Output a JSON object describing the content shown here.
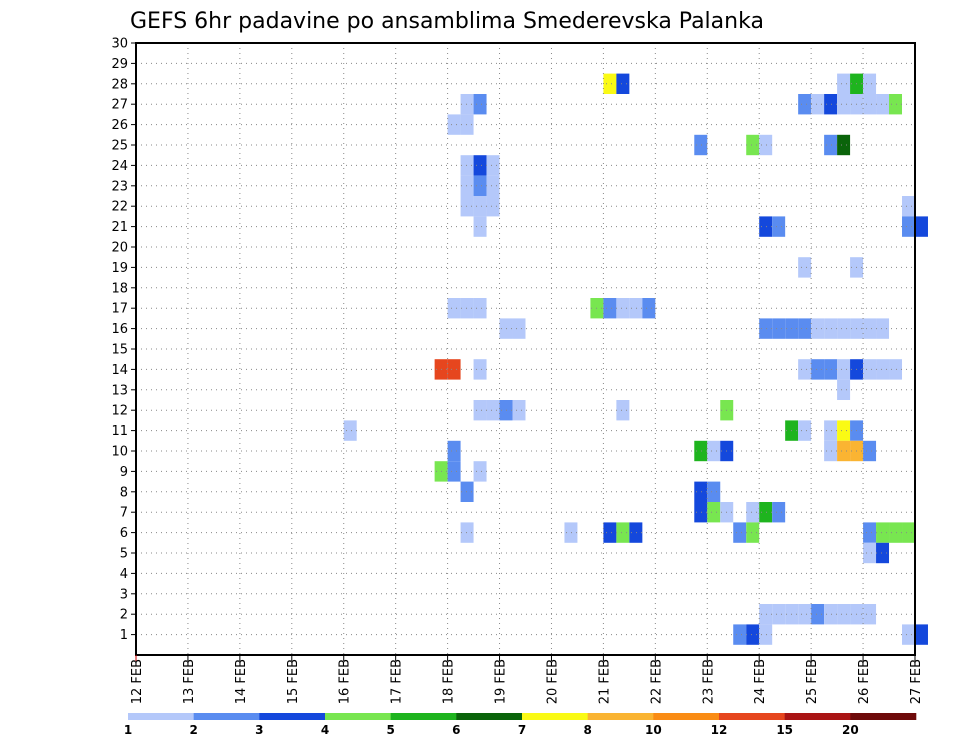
{
  "chart_data": {
    "type": "heatmap",
    "title": "GEFS 6hr padavine po ansamblima Smederevska Palanka",
    "xlabel": "",
    "ylabel": "",
    "x_ticks": [
      "12 FEB",
      "13 FEB",
      "14 FEB",
      "15 FEB",
      "16 FEB",
      "17 FEB",
      "18 FEB",
      "19 FEB",
      "20 FEB",
      "21 FEB",
      "22 FEB",
      "23 FEB",
      "24 FEB",
      "25 FEB",
      "26 FEB",
      "27 FEB"
    ],
    "y_ticks": [
      "1",
      "2",
      "3",
      "4",
      "5",
      "6",
      "7",
      "8",
      "9",
      "10",
      "11",
      "12",
      "13",
      "14",
      "15",
      "16",
      "17",
      "18",
      "19",
      "20",
      "21",
      "22",
      "23",
      "24",
      "25",
      "26",
      "27",
      "28",
      "29",
      "30"
    ],
    "xlim_days": [
      0,
      15
    ],
    "ylim_members": [
      0,
      30
    ],
    "time_step_days": 0.25,
    "grid": true,
    "colorbar": {
      "labels": [
        "1",
        "2",
        "3",
        "4",
        "5",
        "6",
        "7",
        "8",
        "10",
        "12",
        "15",
        "20"
      ],
      "colors": [
        "#b4c8fa",
        "#5a8cf0",
        "#1448dc",
        "#78e650",
        "#1eb41e",
        "#0a640a",
        "#fafa14",
        "#fab432",
        "#fa8c14",
        "#e6461e",
        "#aa1414",
        "#6e0a0a"
      ]
    },
    "cells": [
      {
        "member": 28,
        "day": 9.0,
        "level": 7
      },
      {
        "member": 28,
        "day": 9.25,
        "level": 3
      },
      {
        "member": 28,
        "day": 13.5,
        "level": 1
      },
      {
        "member": 28,
        "day": 13.75,
        "level": 5
      },
      {
        "member": 28,
        "day": 14.0,
        "level": 1
      },
      {
        "member": 27,
        "day": 6.25,
        "level": 1
      },
      {
        "member": 27,
        "day": 6.5,
        "level": 2
      },
      {
        "member": 27,
        "day": 12.75,
        "level": 2
      },
      {
        "member": 27,
        "day": 13.0,
        "level": 1
      },
      {
        "member": 27,
        "day": 13.25,
        "level": 3
      },
      {
        "member": 27,
        "day": 13.5,
        "level": 1
      },
      {
        "member": 27,
        "day": 13.75,
        "level": 1
      },
      {
        "member": 27,
        "day": 14.0,
        "level": 1
      },
      {
        "member": 27,
        "day": 14.25,
        "level": 1
      },
      {
        "member": 27,
        "day": 14.5,
        "level": 4
      },
      {
        "member": 26,
        "day": 6.0,
        "level": 1
      },
      {
        "member": 26,
        "day": 6.25,
        "level": 1
      },
      {
        "member": 25,
        "day": 10.75,
        "level": 2
      },
      {
        "member": 25,
        "day": 11.75,
        "level": 4
      },
      {
        "member": 25,
        "day": 12.0,
        "level": 1
      },
      {
        "member": 25,
        "day": 13.25,
        "level": 2
      },
      {
        "member": 25,
        "day": 13.5,
        "level": 6
      },
      {
        "member": 24,
        "day": 6.25,
        "level": 1
      },
      {
        "member": 24,
        "day": 6.5,
        "level": 3
      },
      {
        "member": 24,
        "day": 6.75,
        "level": 1
      },
      {
        "member": 23,
        "day": 6.25,
        "level": 1
      },
      {
        "member": 23,
        "day": 6.5,
        "level": 2
      },
      {
        "member": 23,
        "day": 6.75,
        "level": 1
      },
      {
        "member": 22,
        "day": 6.25,
        "level": 1
      },
      {
        "member": 22,
        "day": 6.5,
        "level": 1
      },
      {
        "member": 22,
        "day": 6.75,
        "level": 1
      },
      {
        "member": 22,
        "day": 14.75,
        "level": 1
      },
      {
        "member": 21,
        "day": 6.5,
        "level": 1
      },
      {
        "member": 21,
        "day": 12.0,
        "level": 3
      },
      {
        "member": 21,
        "day": 12.25,
        "level": 2
      },
      {
        "member": 21,
        "day": 14.75,
        "level": 2
      },
      {
        "member": 21,
        "day": 15.0,
        "level": 3
      },
      {
        "member": 19,
        "day": 12.75,
        "level": 1
      },
      {
        "member": 19,
        "day": 13.75,
        "level": 1
      },
      {
        "member": 17,
        "day": 6.0,
        "level": 1
      },
      {
        "member": 17,
        "day": 6.25,
        "level": 1
      },
      {
        "member": 17,
        "day": 6.5,
        "level": 1
      },
      {
        "member": 17,
        "day": 8.75,
        "level": 4
      },
      {
        "member": 17,
        "day": 9.0,
        "level": 2
      },
      {
        "member": 17,
        "day": 9.25,
        "level": 1
      },
      {
        "member": 17,
        "day": 9.5,
        "level": 1
      },
      {
        "member": 17,
        "day": 9.75,
        "level": 2
      },
      {
        "member": 16,
        "day": 7.0,
        "level": 1
      },
      {
        "member": 16,
        "day": 7.25,
        "level": 1
      },
      {
        "member": 16,
        "day": 12.0,
        "level": 2
      },
      {
        "member": 16,
        "day": 12.25,
        "level": 2
      },
      {
        "member": 16,
        "day": 12.5,
        "level": 2
      },
      {
        "member": 16,
        "day": 12.75,
        "level": 2
      },
      {
        "member": 16,
        "day": 13.0,
        "level": 1
      },
      {
        "member": 16,
        "day": 13.25,
        "level": 1
      },
      {
        "member": 16,
        "day": 13.5,
        "level": 1
      },
      {
        "member": 16,
        "day": 13.75,
        "level": 1
      },
      {
        "member": 16,
        "day": 14.0,
        "level": 1
      },
      {
        "member": 16,
        "day": 14.25,
        "level": 1
      },
      {
        "member": 14,
        "day": 5.75,
        "level": 10
      },
      {
        "member": 14,
        "day": 6.0,
        "level": 10
      },
      {
        "member": 14,
        "day": 6.5,
        "level": 1
      },
      {
        "member": 14,
        "day": 12.75,
        "level": 1
      },
      {
        "member": 14,
        "day": 13.0,
        "level": 2
      },
      {
        "member": 14,
        "day": 13.25,
        "level": 2
      },
      {
        "member": 14,
        "day": 13.5,
        "level": 1
      },
      {
        "member": 14,
        "day": 13.75,
        "level": 3
      },
      {
        "member": 14,
        "day": 14.0,
        "level": 1
      },
      {
        "member": 14,
        "day": 14.25,
        "level": 1
      },
      {
        "member": 14,
        "day": 14.5,
        "level": 1
      },
      {
        "member": 13,
        "day": 13.5,
        "level": 1
      },
      {
        "member": 12,
        "day": 6.5,
        "level": 1
      },
      {
        "member": 12,
        "day": 6.75,
        "level": 1
      },
      {
        "member": 12,
        "day": 7.0,
        "level": 2
      },
      {
        "member": 12,
        "day": 7.25,
        "level": 1
      },
      {
        "member": 12,
        "day": 9.25,
        "level": 1
      },
      {
        "member": 12,
        "day": 11.25,
        "level": 4
      },
      {
        "member": 11,
        "day": 4.0,
        "level": 1
      },
      {
        "member": 11,
        "day": 12.5,
        "level": 5
      },
      {
        "member": 11,
        "day": 12.75,
        "level": 1
      },
      {
        "member": 11,
        "day": 13.25,
        "level": 1
      },
      {
        "member": 11,
        "day": 13.5,
        "level": 7
      },
      {
        "member": 11,
        "day": 13.75,
        "level": 2
      },
      {
        "member": 10,
        "day": 6.0,
        "level": 2
      },
      {
        "member": 10,
        "day": 10.75,
        "level": 5
      },
      {
        "member": 10,
        "day": 11.0,
        "level": 1
      },
      {
        "member": 10,
        "day": 11.25,
        "level": 3
      },
      {
        "member": 10,
        "day": 13.25,
        "level": 1
      },
      {
        "member": 10,
        "day": 13.5,
        "level": 8
      },
      {
        "member": 10,
        "day": 13.75,
        "level": 8
      },
      {
        "member": 10,
        "day": 14.0,
        "level": 2
      },
      {
        "member": 9,
        "day": 5.75,
        "level": 4
      },
      {
        "member": 9,
        "day": 6.0,
        "level": 2
      },
      {
        "member": 9,
        "day": 6.5,
        "level": 1
      },
      {
        "member": 8,
        "day": 6.25,
        "level": 2
      },
      {
        "member": 8,
        "day": 10.75,
        "level": 3
      },
      {
        "member": 8,
        "day": 11.0,
        "level": 2
      },
      {
        "member": 7,
        "day": 10.75,
        "level": 3
      },
      {
        "member": 7,
        "day": 11.0,
        "level": 4
      },
      {
        "member": 7,
        "day": 11.25,
        "level": 1
      },
      {
        "member": 7,
        "day": 11.75,
        "level": 1
      },
      {
        "member": 7,
        "day": 12.0,
        "level": 5
      },
      {
        "member": 7,
        "day": 12.25,
        "level": 2
      },
      {
        "member": 6,
        "day": 6.25,
        "level": 1
      },
      {
        "member": 6,
        "day": 8.25,
        "level": 1
      },
      {
        "member": 6,
        "day": 9.0,
        "level": 3
      },
      {
        "member": 6,
        "day": 9.25,
        "level": 4
      },
      {
        "member": 6,
        "day": 9.5,
        "level": 3
      },
      {
        "member": 6,
        "day": 11.5,
        "level": 2
      },
      {
        "member": 6,
        "day": 11.75,
        "level": 4
      },
      {
        "member": 6,
        "day": 14.0,
        "level": 2
      },
      {
        "member": 6,
        "day": 14.25,
        "level": 4
      },
      {
        "member": 6,
        "day": 14.5,
        "level": 4
      },
      {
        "member": 6,
        "day": 14.75,
        "level": 4
      },
      {
        "member": 5,
        "day": 14.0,
        "level": 1
      },
      {
        "member": 5,
        "day": 14.25,
        "level": 3
      },
      {
        "member": 2,
        "day": 12.0,
        "level": 1
      },
      {
        "member": 2,
        "day": 12.25,
        "level": 1
      },
      {
        "member": 2,
        "day": 12.5,
        "level": 1
      },
      {
        "member": 2,
        "day": 12.75,
        "level": 1
      },
      {
        "member": 2,
        "day": 13.0,
        "level": 2
      },
      {
        "member": 2,
        "day": 13.25,
        "level": 1
      },
      {
        "member": 2,
        "day": 13.5,
        "level": 1
      },
      {
        "member": 2,
        "day": 13.75,
        "level": 1
      },
      {
        "member": 2,
        "day": 14.0,
        "level": 1
      },
      {
        "member": 1,
        "day": 11.5,
        "level": 2
      },
      {
        "member": 1,
        "day": 11.75,
        "level": 3
      },
      {
        "member": 1,
        "day": 12.0,
        "level": 1
      },
      {
        "member": 1,
        "day": 14.75,
        "level": 1
      },
      {
        "member": 1,
        "day": 15.0,
        "level": 3
      }
    ]
  }
}
